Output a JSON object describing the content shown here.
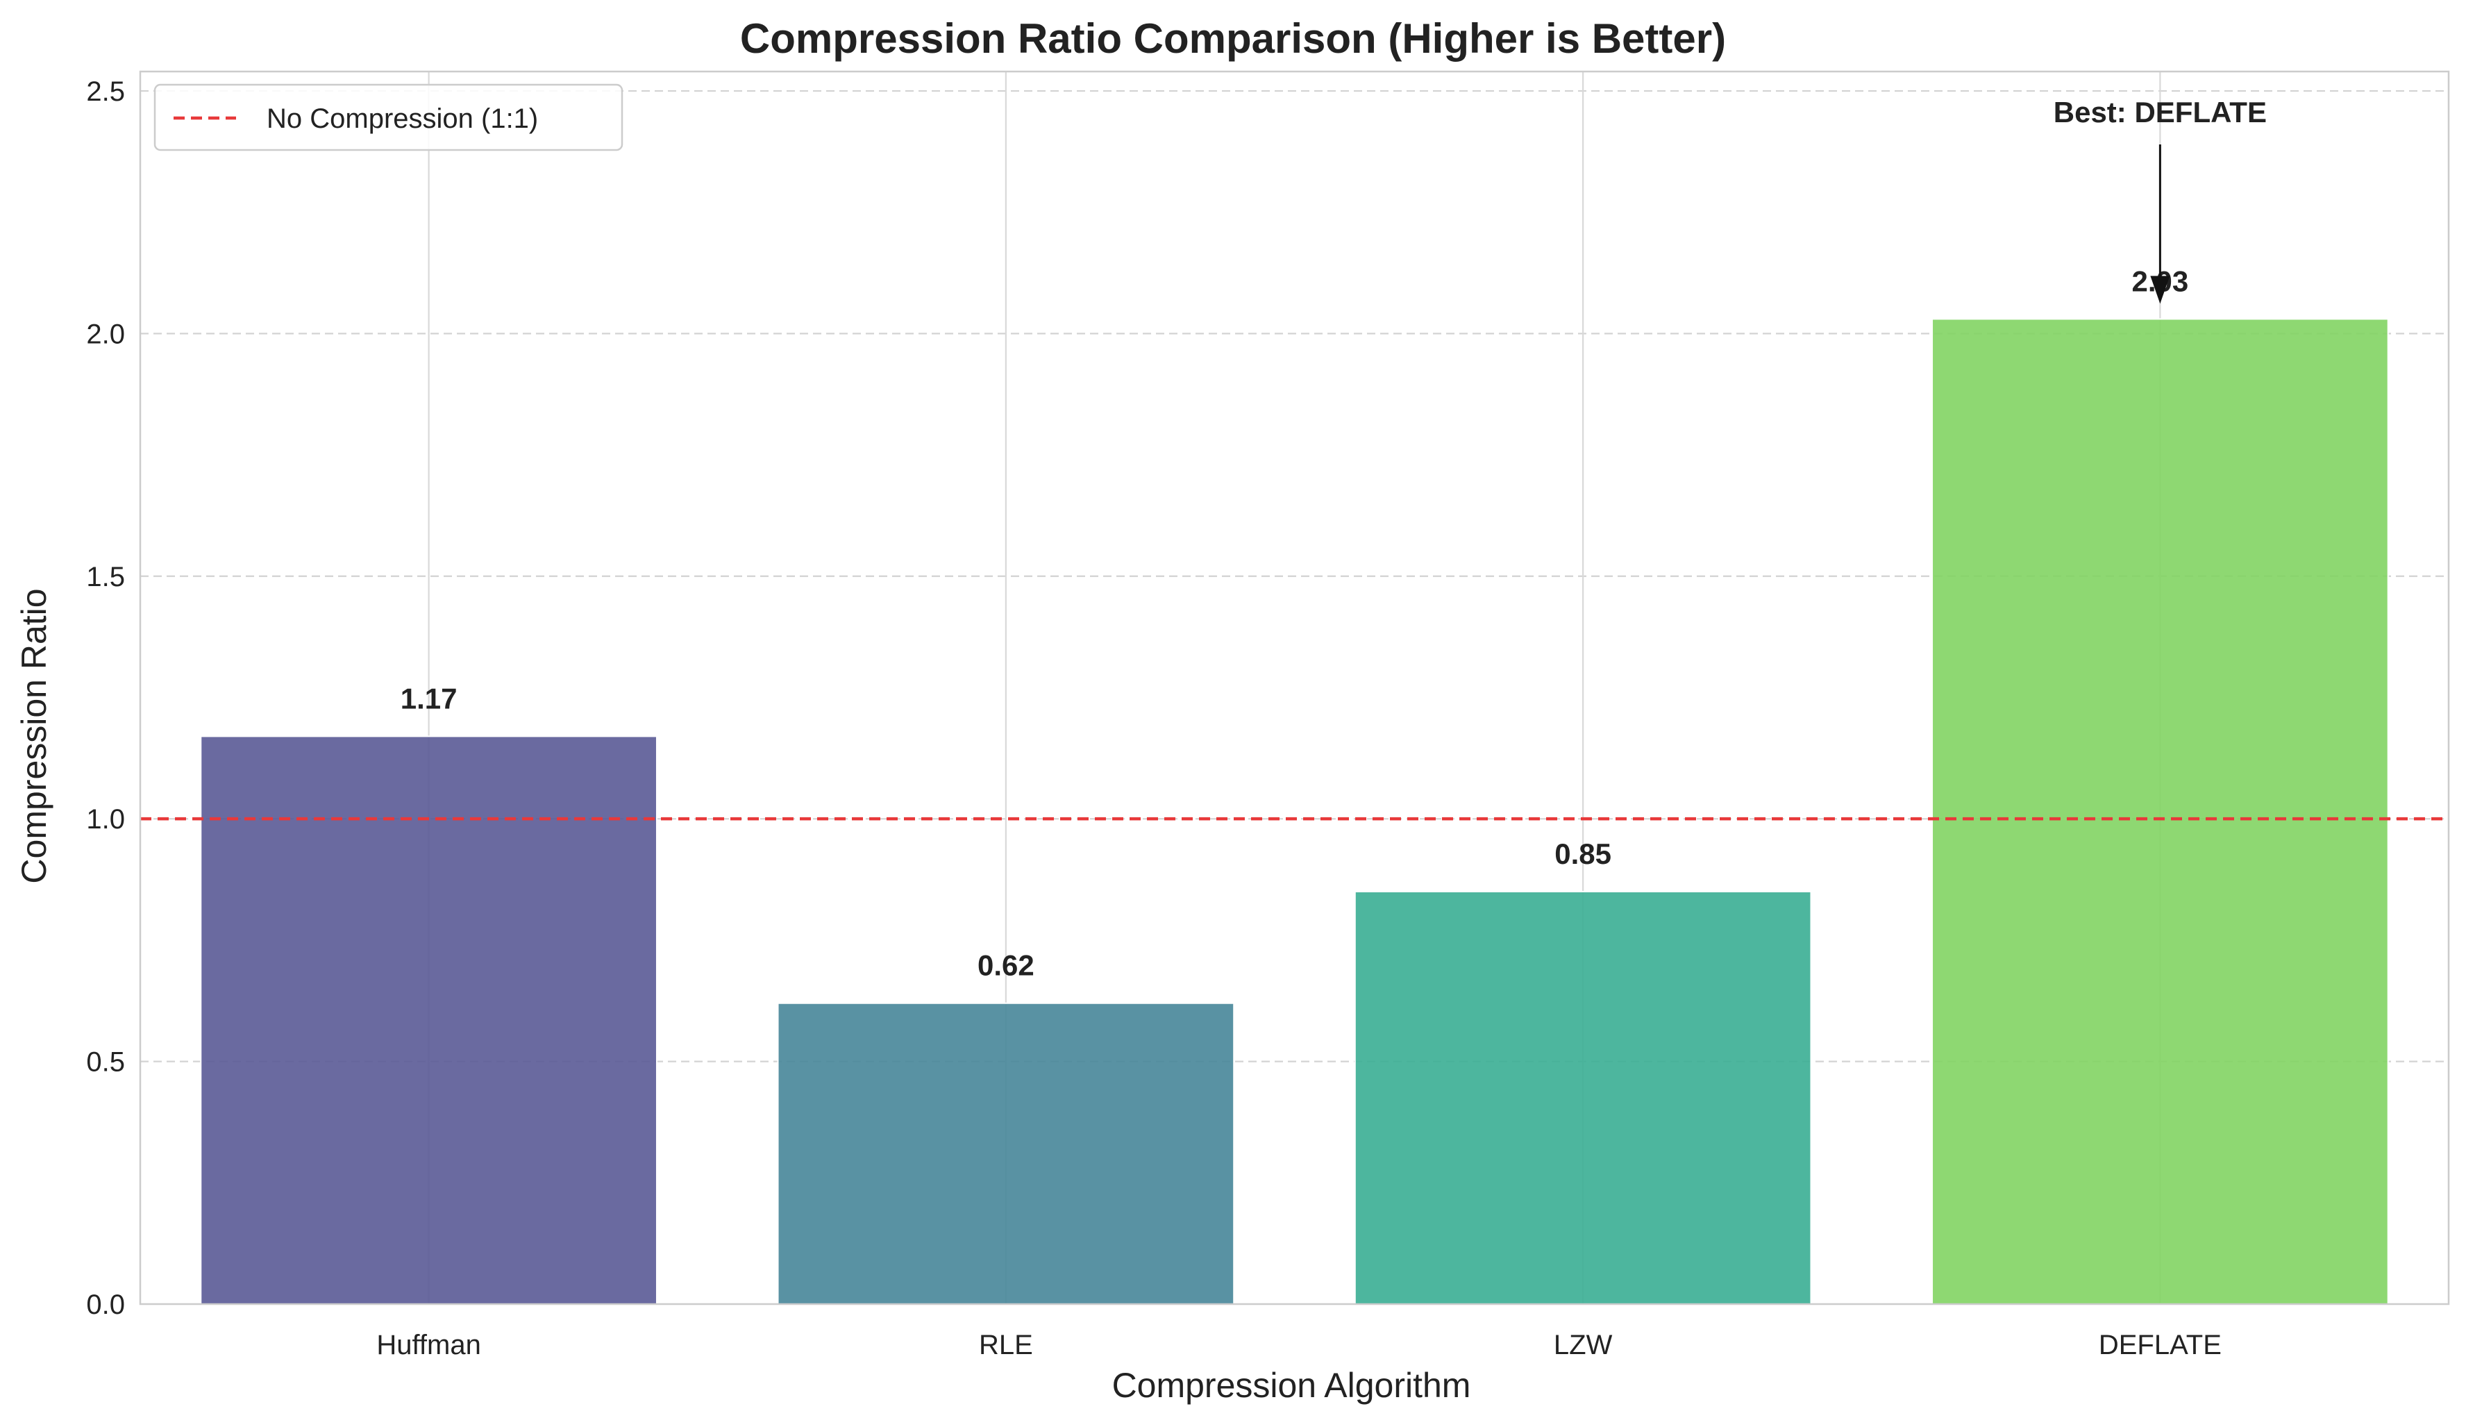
{
  "chart_data": {
    "type": "bar",
    "title": "Compression Ratio Comparison (Higher is Better)",
    "xlabel": "Compression Algorithm",
    "ylabel": "Compression Ratio",
    "categories": [
      "Huffman",
      "RLE",
      "LZW",
      "DEFLATE"
    ],
    "values": [
      1.17,
      0.62,
      0.85,
      2.03
    ],
    "value_labels": [
      "1.17",
      "0.62",
      "0.85",
      "2.03"
    ],
    "bar_colors": [
      "#5a5a96",
      "#478699",
      "#3aae94",
      "#82d463"
    ],
    "ylim": [
      0,
      2.54
    ],
    "yticks": [
      0.0,
      0.5,
      1.0,
      1.5,
      2.0,
      2.5
    ],
    "ytick_labels": [
      "0.0",
      "0.5",
      "1.0",
      "1.5",
      "2.0",
      "2.5"
    ],
    "grid": true,
    "reference_line": {
      "value": 1.0,
      "label": "No Compression (1:1)",
      "color": "#e8393a"
    },
    "annotation": {
      "text": "Best: DEFLATE",
      "target_category": "DEFLATE"
    },
    "legend": {
      "position": "top-left"
    }
  }
}
